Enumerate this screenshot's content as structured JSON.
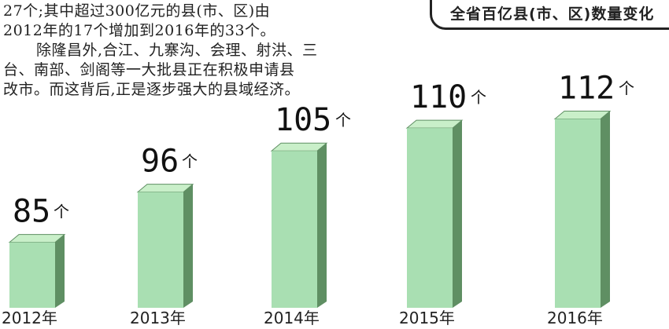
{
  "paragraph": [
    "27个;其中超过300亿元的县(市、区)由",
    "2012年的17个增加到2016年的33个。",
    "除隆昌外,合江、九寨沟、会理、射洪、三",
    "台、南部、剑阁等一大批县正在积极申请县",
    "改市。而这背后,正是逐步强大的县域经济。"
  ],
  "chart_data": {
    "type": "bar",
    "title": "全省百亿县(市、区)数量变化",
    "categories": [
      "2012年",
      "2013年",
      "2014年",
      "2015年",
      "2016年"
    ],
    "values": [
      85,
      96,
      105,
      110,
      112
    ],
    "unit": "个",
    "xlabel": "",
    "ylabel": "",
    "grid": false,
    "style": "3d",
    "colors": {
      "front": "#a9dfb2",
      "side": "#5f8f63",
      "top": "#c9efc9"
    }
  }
}
